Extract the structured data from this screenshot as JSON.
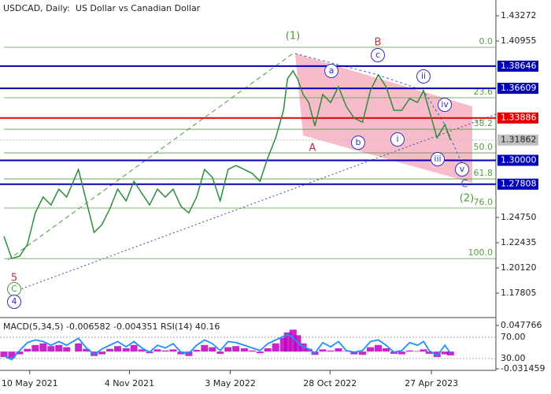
{
  "chart_data": {
    "type": "line",
    "title": "USDCAD, Daily:  US Dollar vs Canadian Dollar",
    "x": [
      -46,
      -32,
      -18,
      -4,
      10,
      24,
      38,
      52,
      66,
      87,
      101,
      115,
      129,
      143,
      157,
      172,
      186,
      200,
      214,
      228,
      242,
      256,
      270,
      284,
      298,
      312,
      326,
      340,
      354,
      368,
      383,
      397,
      411,
      425,
      439,
      453,
      460,
      470,
      478,
      488,
      498,
      509,
      523,
      537,
      551,
      565,
      579,
      594,
      608,
      622,
      636,
      650,
      664,
      678,
      692,
      703,
      713,
      727,
      741,
      751
    ],
    "xlim": [
      -53,
      832
    ],
    "xticks": [
      {
        "value": 0,
        "label": "10 May 2021"
      },
      {
        "value": 178,
        "label": "4 Nov 2021"
      },
      {
        "value": 358,
        "label": "3 May 2022"
      },
      {
        "value": 536,
        "label": "28 Oct 2022"
      },
      {
        "value": 717,
        "label": "27 Apr 2023"
      }
    ],
    "series": [
      {
        "color": "#2e8b3e",
        "values": [
          1.2301,
          1.2099,
          1.212,
          1.2229,
          1.2518,
          1.2663,
          1.259,
          1.2735,
          1.2663,
          1.2916,
          1.2627,
          1.2337,
          1.241,
          1.2555,
          1.2735,
          1.2627,
          1.2808,
          1.2699,
          1.259,
          1.2735,
          1.2663,
          1.2735,
          1.2576,
          1.2518,
          1.2663,
          1.2916,
          1.2844,
          1.2627,
          1.2916,
          1.2952,
          1.2916,
          1.288,
          1.2808,
          1.3025,
          1.3206,
          1.3459,
          1.3748,
          1.3821,
          1.3748,
          1.3604,
          1.3531,
          1.3314,
          1.3604,
          1.3531,
          1.3676,
          1.3495,
          1.3387,
          1.335,
          1.364,
          1.3785,
          1.3676,
          1.3459,
          1.3459,
          1.3567,
          1.3531,
          1.364,
          1.3459,
          1.3206,
          1.3329,
          1.3186
        ]
      }
    ],
    "ylim": [
      1.15634,
      1.4414
    ],
    "yticks": [
      1.43272,
      1.40955,
      {
        "value": 1.2475,
        "label": "1.24750"
      },
      1.22435,
      {
        "value": 1.2012,
        "label": "1.20120"
      },
      1.17805
    ],
    "levels": [
      {
        "value": 1.38646,
        "color": "#0000b4"
      },
      {
        "value": 1.36609,
        "color": "#0000b4"
      },
      {
        "value": 1.33886,
        "color": "#e00000"
      },
      {
        "value": {
          "value": 1.3,
          "label": "1.30000"
        },
        "color": "#0000b4"
      },
      {
        "value": 1.27808,
        "color": "#0000b4"
      }
    ],
    "current_price": {
      "value": 1.31862,
      "color": "#c0c0c0"
    },
    "fib_levels": [
      {
        "value": 1.40378,
        "label": "0.0"
      },
      {
        "value": 1.3575,
        "label": "23.6"
      },
      {
        "value": 1.3285,
        "label": "38.2"
      },
      {
        "value": 1.3068,
        "label": "50.0"
      },
      {
        "value": 1.2829,
        "label": "61.8"
      },
      {
        "value": 1.2562,
        "label": "76.0"
      },
      {
        "value": 1.2098,
        "label": "100.0"
      }
    ],
    "fib_color": "#5a9a4a",
    "annotations": [
      {
        "text": "(1)",
        "color": "#4a9a3a"
      },
      {
        "text": "B",
        "color": "#c03040"
      },
      {
        "text": "A",
        "color": "#c03040"
      },
      {
        "text": "(2)",
        "color": "#4a9a3a"
      },
      {
        "text": "C",
        "color": "#6060a0"
      },
      {
        "text": "5",
        "color": "#c03040"
      },
      {
        "text": "C",
        "color": "#4a9a3a",
        "circled": true
      },
      {
        "text": "4",
        "color": "#3030c0",
        "circled": true
      },
      {
        "text": "a",
        "color": "#3030c0",
        "circled": true
      },
      {
        "text": "c",
        "color": "#3030c0",
        "circled": true
      },
      {
        "text": "b",
        "color": "#3030c0",
        "circled": true
      },
      {
        "text": "i",
        "color": "#3030c0",
        "circled": true
      },
      {
        "text": "ii",
        "color": "#3030c0",
        "circled": true
      },
      {
        "text": "iii",
        "color": "#3030c0",
        "circled": true
      },
      {
        "text": "iv",
        "color": "#3030c0",
        "circled": true
      },
      {
        "text": "v",
        "color": "#3030c0",
        "circled": true
      }
    ],
    "indicator": {
      "title": "MACD(5,34,5) -0.006582 -0.004351 RSI(14) 40.16",
      "macd_ticks": [
        -0.031459,
        0.047766
      ],
      "rsi_ticks": [
        {
          "value": 70,
          "label": "70.00"
        },
        {
          "value": 30,
          "label": "30.00"
        }
      ],
      "macd": {
        "color": "#c000c0",
        "values": [
          -0.01,
          -0.012,
          -0.005,
          0.005,
          0.012,
          0.015,
          0.01,
          0.012,
          0.008,
          0.015,
          0.005,
          -0.008,
          -0.005,
          0.005,
          0.01,
          0.006,
          0.012,
          0.004,
          -0.003,
          0.004,
          0.002,
          0.004,
          -0.005,
          -0.008,
          0.003,
          0.012,
          0.008,
          -0.004,
          0.008,
          0.01,
          0.006,
          0.002,
          -0.003,
          0.006,
          0.015,
          0.025,
          0.035,
          0.04,
          0.03,
          0.015,
          0.005,
          -0.006,
          0.004,
          0.002,
          0.006,
          0.001,
          -0.005,
          -0.006,
          0.008,
          0.012,
          0.006,
          -0.004,
          -0.005,
          0.002,
          0.001,
          0.004,
          -0.004,
          -0.01,
          -0.005,
          -0.007
        ]
      },
      "rsi": {
        "color": "#1e90ff",
        "values": [
          35,
          28,
          45,
          60,
          65,
          62,
          55,
          62,
          55,
          68,
          50,
          38,
          48,
          55,
          62,
          52,
          62,
          50,
          42,
          55,
          50,
          58,
          42,
          40,
          55,
          65,
          58,
          45,
          62,
          60,
          55,
          50,
          45,
          58,
          65,
          72,
          75,
          70,
          60,
          52,
          48,
          40,
          60,
          52,
          62,
          45,
          42,
          45,
          62,
          65,
          55,
          42,
          45,
          60,
          55,
          62,
          45,
          35,
          55,
          40
        ]
      }
    }
  }
}
